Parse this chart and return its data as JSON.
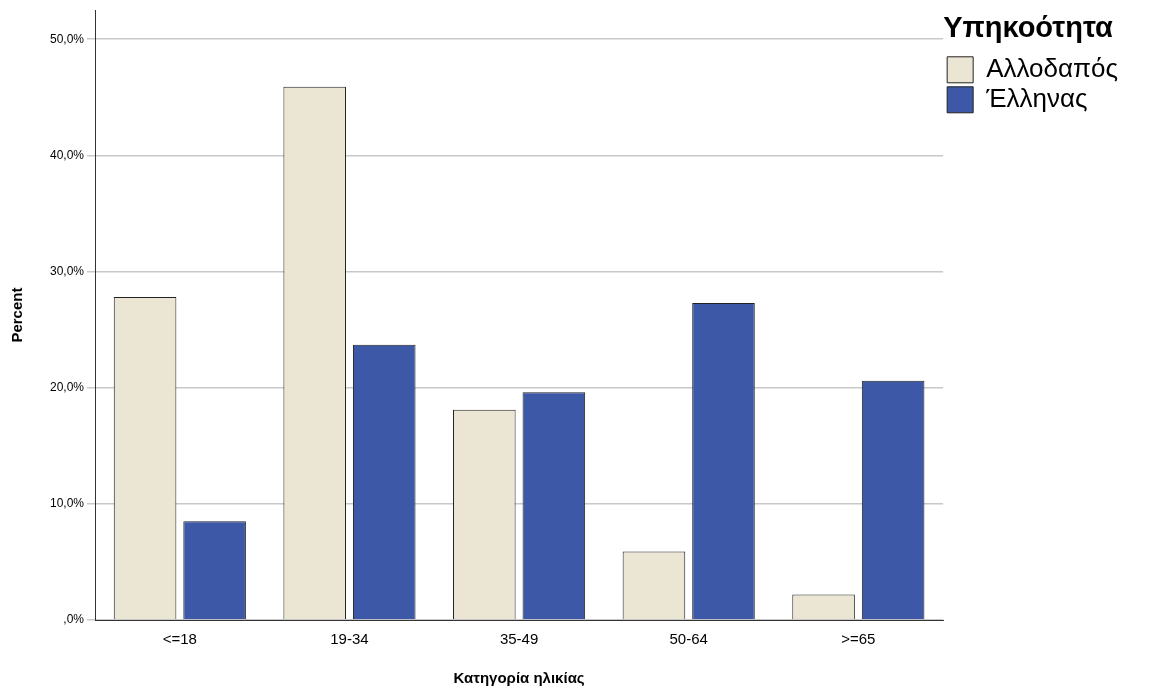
{
  "chart_data": {
    "type": "bar",
    "xlabel": "Κατηγορία ηλικίας",
    "ylabel": "Percent",
    "legend_title": "Υπηκοότητα",
    "legend": "top right",
    "categories": [
      "<=18",
      "19-34",
      "35-49",
      "50-64",
      ">=65"
    ],
    "series": [
      {
        "name": "Αλλοδαπός",
        "color": "#ebe6d3",
        "values": [
          27.8,
          45.9,
          18.1,
          5.9,
          2.2
        ]
      },
      {
        "name": "Έλληνας",
        "color": "#3e58a8",
        "values": [
          8.5,
          23.7,
          19.6,
          27.3,
          20.6
        ]
      }
    ],
    "ylim": [
      0,
      52.5
    ],
    "yticks": [
      {
        "value": 0,
        "label": ",0%"
      },
      {
        "value": 10,
        "label": "10,0%"
      },
      {
        "value": 20,
        "label": "20,0%"
      },
      {
        "value": 30,
        "label": "30,0%"
      },
      {
        "value": 40,
        "label": "40,0%"
      },
      {
        "value": 50,
        "label": "50,0%"
      }
    ],
    "grid": "y"
  }
}
